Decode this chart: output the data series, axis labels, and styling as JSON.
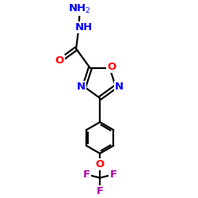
{
  "background": "#ffffff",
  "bond_color": "#000000",
  "bond_width": 1.6,
  "atom_colors": {
    "N": "#0000ff",
    "O": "#ff0000",
    "F": "#aa00aa",
    "C": "#000000"
  },
  "font_size": 9.5
}
